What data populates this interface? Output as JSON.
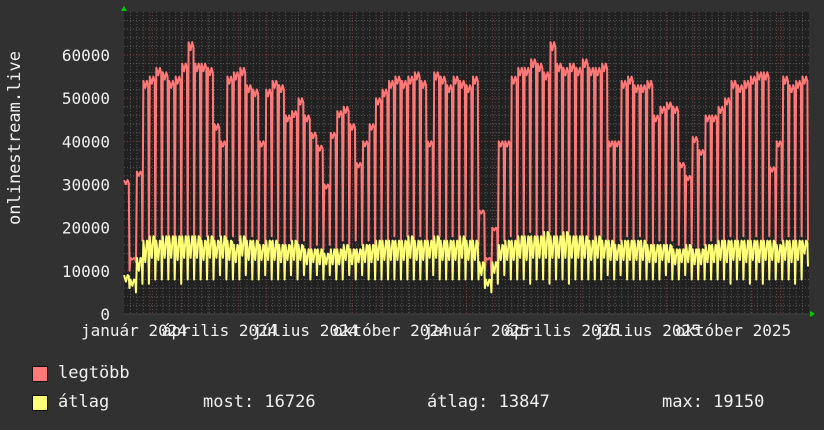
{
  "chart_data": {
    "type": "line",
    "ylabel": "onlinestream.live",
    "ylim": [
      0,
      70000
    ],
    "y_ticks": [
      "0",
      "10000",
      "20000",
      "30000",
      "40000",
      "50000",
      "60000"
    ],
    "x_ticks": [
      "január 2024",
      "április 2024",
      "július 2024",
      "október 2024",
      "január 2025",
      "április 2025",
      "július 2025",
      "október 2025"
    ],
    "x_range": [
      "2024-01",
      "2025-12"
    ],
    "grid": true,
    "legend_placement": "bottom-left",
    "colors": {
      "background": "#313131",
      "plot": "#212121",
      "grid": "#555555",
      "major_grid": "#7a3a3a",
      "axis_arrow": "#00cc00"
    },
    "series": [
      {
        "name": "legtöbb",
        "color": "#ff7878",
        "weekly_high": [
          31000,
          13000,
          33000,
          54000,
          55000,
          57000,
          56000,
          54000,
          55000,
          58000,
          63000,
          58000,
          58000,
          57000,
          44000,
          40000,
          55000,
          56000,
          57000,
          53000,
          52000,
          40000,
          52000,
          54000,
          53000,
          46000,
          47000,
          50000,
          46000,
          42000,
          39000,
          30000,
          42000,
          47000,
          48000,
          44000,
          35000,
          40000,
          44000,
          50000,
          52000,
          54000,
          55000,
          54000,
          55000,
          56000,
          54000,
          40000,
          56000,
          55000,
          53000,
          55000,
          54000,
          53000,
          55000,
          24000,
          13000,
          20000,
          40000,
          40000,
          55000,
          57000,
          57000,
          59000,
          58000,
          56000,
          63000,
          58000,
          57000,
          58000,
          57000,
          59000,
          57000,
          57000,
          58000,
          40000,
          40000,
          54000,
          55000,
          53000,
          53000,
          54000,
          46000,
          48000,
          49000,
          48000,
          35000,
          32000,
          41000,
          38000,
          46000,
          46000,
          48000,
          50000,
          54000,
          53000,
          54000,
          55000,
          56000,
          56000,
          34000,
          40000,
          55000,
          53000,
          54000,
          55000
        ],
        "weekly_low": [
          10000,
          12000,
          17000,
          17000,
          18000,
          17000,
          18000,
          16000,
          18000,
          17000,
          18000,
          17000,
          18000,
          16000,
          18000,
          17000,
          18000,
          17000,
          16000,
          18000,
          17000,
          16000,
          18000,
          17000,
          16000,
          17000,
          16000,
          17000,
          15000,
          16000,
          15000,
          16000,
          15000,
          17000,
          16000,
          17000,
          16000,
          17000,
          16000,
          17000,
          17000,
          18000,
          17000,
          18000,
          17000,
          18000,
          17000,
          16000,
          18000,
          17000,
          18000,
          17000,
          18000,
          17000,
          16000,
          10000,
          9000,
          12000,
          17000,
          18000,
          17000,
          18000,
          19000,
          18000,
          17000,
          19000,
          18000,
          17000,
          19000,
          18000,
          17000,
          18000,
          17000,
          18000,
          17000,
          16000,
          17000,
          18000,
          17000,
          18000,
          17000,
          16000,
          17000,
          16000,
          17000,
          16000,
          15000,
          16000,
          15000,
          16000,
          17000,
          16000,
          17000,
          18000,
          17000,
          18000,
          17000,
          18000,
          17000,
          18000,
          16000,
          17000,
          18000,
          17000,
          18000,
          17000
        ]
      },
      {
        "name": "átlag",
        "color": "#ffff78",
        "weekly_high": [
          9000,
          8000,
          13000,
          17000,
          18000,
          17000,
          18000,
          18000,
          18000,
          18000,
          18000,
          18000,
          17000,
          18000,
          17000,
          18000,
          17000,
          16000,
          18000,
          17000,
          17000,
          16000,
          17000,
          17000,
          16000,
          16000,
          17000,
          16000,
          15000,
          15000,
          15000,
          14000,
          15000,
          15000,
          16000,
          15000,
          15000,
          16000,
          16000,
          17000,
          17000,
          17000,
          17000,
          17000,
          18000,
          17000,
          17000,
          17000,
          18000,
          17000,
          17000,
          17000,
          18000,
          17000,
          17000,
          12000,
          8000,
          12000,
          16000,
          17000,
          17000,
          18000,
          18000,
          18000,
          18000,
          19000,
          18000,
          18000,
          19000,
          18000,
          18000,
          18000,
          17000,
          18000,
          17000,
          17000,
          16000,
          17000,
          17000,
          17000,
          17000,
          16000,
          16000,
          16000,
          16000,
          15000,
          15000,
          16000,
          15000,
          15000,
          16000,
          16000,
          17000,
          17000,
          17000,
          17000,
          17000,
          17000,
          17000,
          17000,
          17000,
          16000,
          17000,
          17000,
          17000,
          17000
        ],
        "weekly_low": [
          6000,
          5000,
          7000,
          7000,
          8000,
          8000,
          8000,
          8000,
          7000,
          8000,
          8000,
          8000,
          8000,
          8000,
          9000,
          8000,
          8000,
          8000,
          9000,
          8000,
          8000,
          9000,
          8000,
          8000,
          8000,
          9000,
          8000,
          9000,
          8000,
          9000,
          8000,
          9000,
          8000,
          8000,
          9000,
          8000,
          9000,
          8000,
          8000,
          8000,
          8000,
          8000,
          8000,
          8000,
          8000,
          8000,
          8000,
          9000,
          8000,
          8000,
          8000,
          8000,
          8000,
          8000,
          8000,
          6000,
          5000,
          7000,
          9000,
          8000,
          8000,
          8000,
          7000,
          8000,
          8000,
          7000,
          8000,
          8000,
          7000,
          8000,
          8000,
          8000,
          8000,
          8000,
          9000,
          8000,
          9000,
          8000,
          8000,
          8000,
          8000,
          8000,
          8000,
          9000,
          8000,
          8000,
          9000,
          8000,
          8000,
          8000,
          8000,
          8000,
          8000,
          7000,
          8000,
          8000,
          7000,
          8000,
          7000,
          8000,
          8000,
          8000,
          8000,
          7000,
          8000,
          11000
        ]
      }
    ],
    "legend": {
      "max_label": "legtöbb",
      "avg_label": "átlag",
      "now": "most: 16726",
      "average": "átlag: 13847",
      "maximum": "max: 19150"
    }
  }
}
